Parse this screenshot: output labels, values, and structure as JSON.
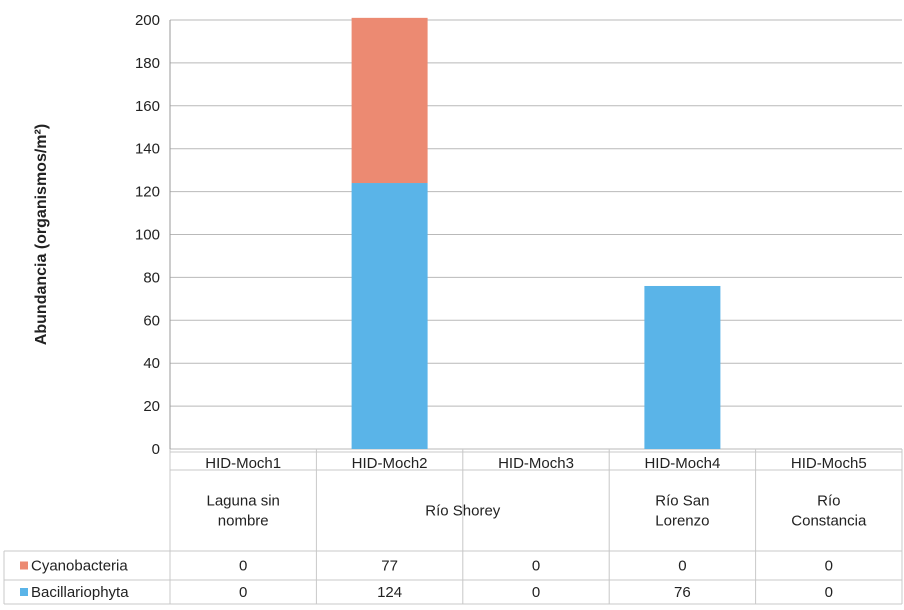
{
  "chart_data": {
    "type": "bar",
    "stacked": true,
    "ylabel": "Abundancia (organismos/m²)",
    "ylim": [
      0,
      200
    ],
    "yticks": [
      0,
      20,
      40,
      60,
      80,
      100,
      120,
      140,
      160,
      180,
      200
    ],
    "grid": true,
    "legend": "table-left",
    "categories": [
      "HID-Moch1",
      "HID-Moch2",
      "HID-Moch3",
      "HID-Moch4",
      "HID-Moch5"
    ],
    "site_groups": [
      {
        "label": [
          "Laguna sin",
          "nombre"
        ],
        "span": [
          0,
          0
        ]
      },
      {
        "label": [
          "Río Shorey"
        ],
        "span": [
          1,
          2
        ]
      },
      {
        "label": [
          "Río San",
          "Lorenzo"
        ],
        "span": [
          3,
          3
        ]
      },
      {
        "label": [
          "Río",
          "Constancia"
        ],
        "span": [
          4,
          4
        ]
      }
    ],
    "series": [
      {
        "name": "Bacillariophyta",
        "color": "#5ab4e8",
        "values": [
          0,
          124,
          0,
          76,
          0
        ],
        "value_labels": [
          "0",
          "124",
          "0",
          "76",
          "0"
        ]
      },
      {
        "name": "Cyanobacteria",
        "color": "#ec8a72",
        "values": [
          0,
          77,
          0,
          0,
          0
        ],
        "value_labels": [
          "0",
          "77",
          "0",
          "0",
          "0"
        ]
      }
    ]
  }
}
